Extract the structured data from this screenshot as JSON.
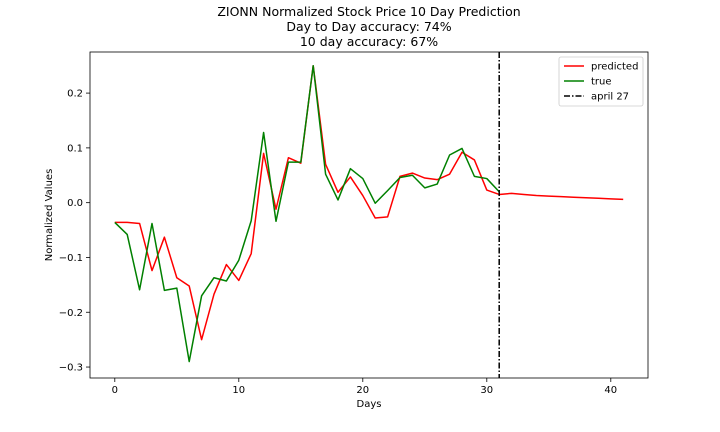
{
  "chart_data": {
    "type": "line",
    "title_lines": [
      "ZIONN Normalized Stock Price 10 Day Prediction",
      "Day to Day accuracy: 74%",
      "10 day accuracy: 67%"
    ],
    "xlabel": "Days",
    "ylabel": "Normalized Values",
    "xlim": [
      -2,
      43
    ],
    "ylim": [
      -0.32,
      0.275
    ],
    "xticks": [
      0,
      10,
      20,
      30,
      40
    ],
    "yticks": [
      -0.3,
      -0.2,
      -0.1,
      0.0,
      0.1,
      0.2
    ],
    "ytick_labels": [
      "−0.3",
      "−0.2",
      "−0.1",
      "0.0",
      "0.1",
      "0.2"
    ],
    "grid": false,
    "legend_position": "top-right",
    "series": [
      {
        "name": "predicted",
        "color": "#ff0000",
        "x": [
          0,
          1,
          2,
          3,
          4,
          5,
          6,
          7,
          8,
          9,
          10,
          11,
          12,
          13,
          14,
          15,
          16,
          17,
          18,
          19,
          20,
          21,
          22,
          23,
          24,
          25,
          26,
          27,
          28,
          29,
          30,
          31,
          32,
          33,
          34,
          35,
          36,
          37,
          38,
          39,
          40,
          41
        ],
        "y": [
          -0.036,
          -0.036,
          -0.038,
          -0.124,
          -0.063,
          -0.137,
          -0.152,
          -0.25,
          -0.167,
          -0.113,
          -0.142,
          -0.093,
          0.09,
          -0.012,
          0.082,
          0.072,
          0.25,
          0.07,
          0.019,
          0.047,
          0.013,
          -0.028,
          -0.026,
          0.048,
          0.054,
          0.045,
          0.042,
          0.052,
          0.092,
          0.078,
          0.023,
          0.015,
          0.017,
          0.015,
          0.013,
          0.012,
          0.011,
          0.01,
          0.009,
          0.008,
          0.007,
          0.006
        ]
      },
      {
        "name": "true",
        "color": "#008000",
        "x": [
          0,
          1,
          2,
          3,
          4,
          5,
          6,
          7,
          8,
          9,
          10,
          11,
          12,
          13,
          14,
          15,
          16,
          17,
          18,
          19,
          20,
          21,
          22,
          23,
          24,
          25,
          26,
          27,
          28,
          29,
          30,
          31
        ],
        "y": [
          -0.036,
          -0.058,
          -0.159,
          -0.038,
          -0.16,
          -0.156,
          -0.29,
          -0.17,
          -0.137,
          -0.143,
          -0.105,
          -0.033,
          0.128,
          -0.034,
          0.074,
          0.074,
          0.25,
          0.052,
          0.005,
          0.062,
          0.044,
          -0.001,
          0.022,
          0.046,
          0.05,
          0.027,
          0.034,
          0.087,
          0.099,
          0.048,
          0.044,
          0.02
        ]
      }
    ],
    "vline": {
      "name": "april 27",
      "x": 31,
      "color": "#000000",
      "style": "dash-dot"
    }
  }
}
